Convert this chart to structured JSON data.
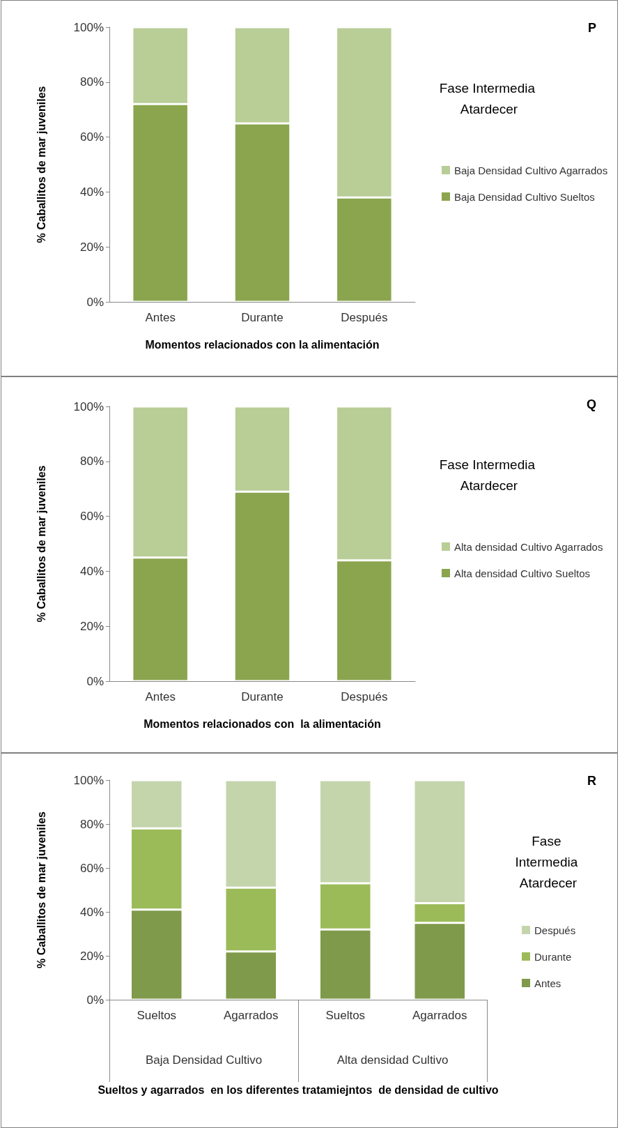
{
  "chart_data": [
    {
      "type": "bar",
      "stacked": true,
      "legend_title": "Fase Intermedia Atardecer",
      "annotations": [
        "P"
      ],
      "xlabel": "Momentos relacionados con la alimentación",
      "ylabel": "% Caballitos de mar juveniles",
      "categories": [
        "Antes",
        "Durante",
        "Después"
      ],
      "ylim": [
        0,
        100
      ],
      "yticks": [
        {
          "value": 0,
          "label": "0%"
        },
        {
          "value": 20,
          "label": "20%"
        },
        {
          "value": 40,
          "label": "40%"
        },
        {
          "value": 60,
          "label": "60%"
        },
        {
          "value": 80,
          "label": "80%"
        },
        {
          "value": 100,
          "label": "100%"
        }
      ],
      "legend": "right",
      "grid": false,
      "series": [
        {
          "name": "Baja Densidad Cultivo Sueltos",
          "color": "#8aa54e",
          "values": [
            72,
            65,
            38
          ]
        },
        {
          "name": "Baja Densidad Cultivo Agarrados",
          "color": "#b9cd96",
          "values": [
            28,
            35,
            62
          ]
        }
      ]
    },
    {
      "type": "bar",
      "stacked": true,
      "legend_title": "Fase Intermedia Atardecer",
      "annotations": [
        "Q"
      ],
      "xlabel": "Momentos relacionados con  la alimentación",
      "ylabel": "% Caballitos de mar juveniles",
      "categories": [
        "Antes",
        "Durante",
        "Después"
      ],
      "ylim": [
        0,
        100
      ],
      "yticks": [
        {
          "value": 0,
          "label": "0%"
        },
        {
          "value": 20,
          "label": "20%"
        },
        {
          "value": 40,
          "label": "40%"
        },
        {
          "value": 60,
          "label": "60%"
        },
        {
          "value": 80,
          "label": "80%"
        },
        {
          "value": 100,
          "label": "100%"
        }
      ],
      "legend": "right",
      "grid": false,
      "series": [
        {
          "name": "Alta densidad Cultivo Sueltos",
          "color": "#8aa54e",
          "values": [
            45,
            69,
            44
          ]
        },
        {
          "name": "Alta densidad Cultivo Agarrados",
          "color": "#b9cd96",
          "values": [
            55,
            31,
            56
          ]
        }
      ]
    },
    {
      "type": "bar",
      "stacked": true,
      "legend_title": "Fase Intermedia Atardecer",
      "annotations": [
        "R",
        "Baja Densidad Cultivo",
        "Alta densidad Cultivo"
      ],
      "xlabel": "Sueltos y agarrados  en los diferentes tratamiejntos  de densidad de cultivo",
      "ylabel": "% Caballitos de mar juveniles",
      "categories": [
        "Sueltos",
        "Agarrados",
        "Sueltos",
        "Agarrados"
      ],
      "ylim": [
        0,
        100
      ],
      "yticks": [
        {
          "value": 0,
          "label": "0%"
        },
        {
          "value": 20,
          "label": "20%"
        },
        {
          "value": 40,
          "label": "40%"
        },
        {
          "value": 60,
          "label": "60%"
        },
        {
          "value": 80,
          "label": "80%"
        },
        {
          "value": 100,
          "label": "100%"
        }
      ],
      "legend": "right",
      "grid": false,
      "series": [
        {
          "name": "Antes",
          "color": "#7f9a4a",
          "values": [
            41,
            22,
            32,
            35
          ]
        },
        {
          "name": "Durante",
          "color": "#9bbb59",
          "values": [
            37,
            29,
            21,
            9
          ]
        },
        {
          "name": "Después",
          "color": "#c4d5ac",
          "values": [
            22,
            49,
            47,
            56
          ]
        }
      ]
    }
  ]
}
